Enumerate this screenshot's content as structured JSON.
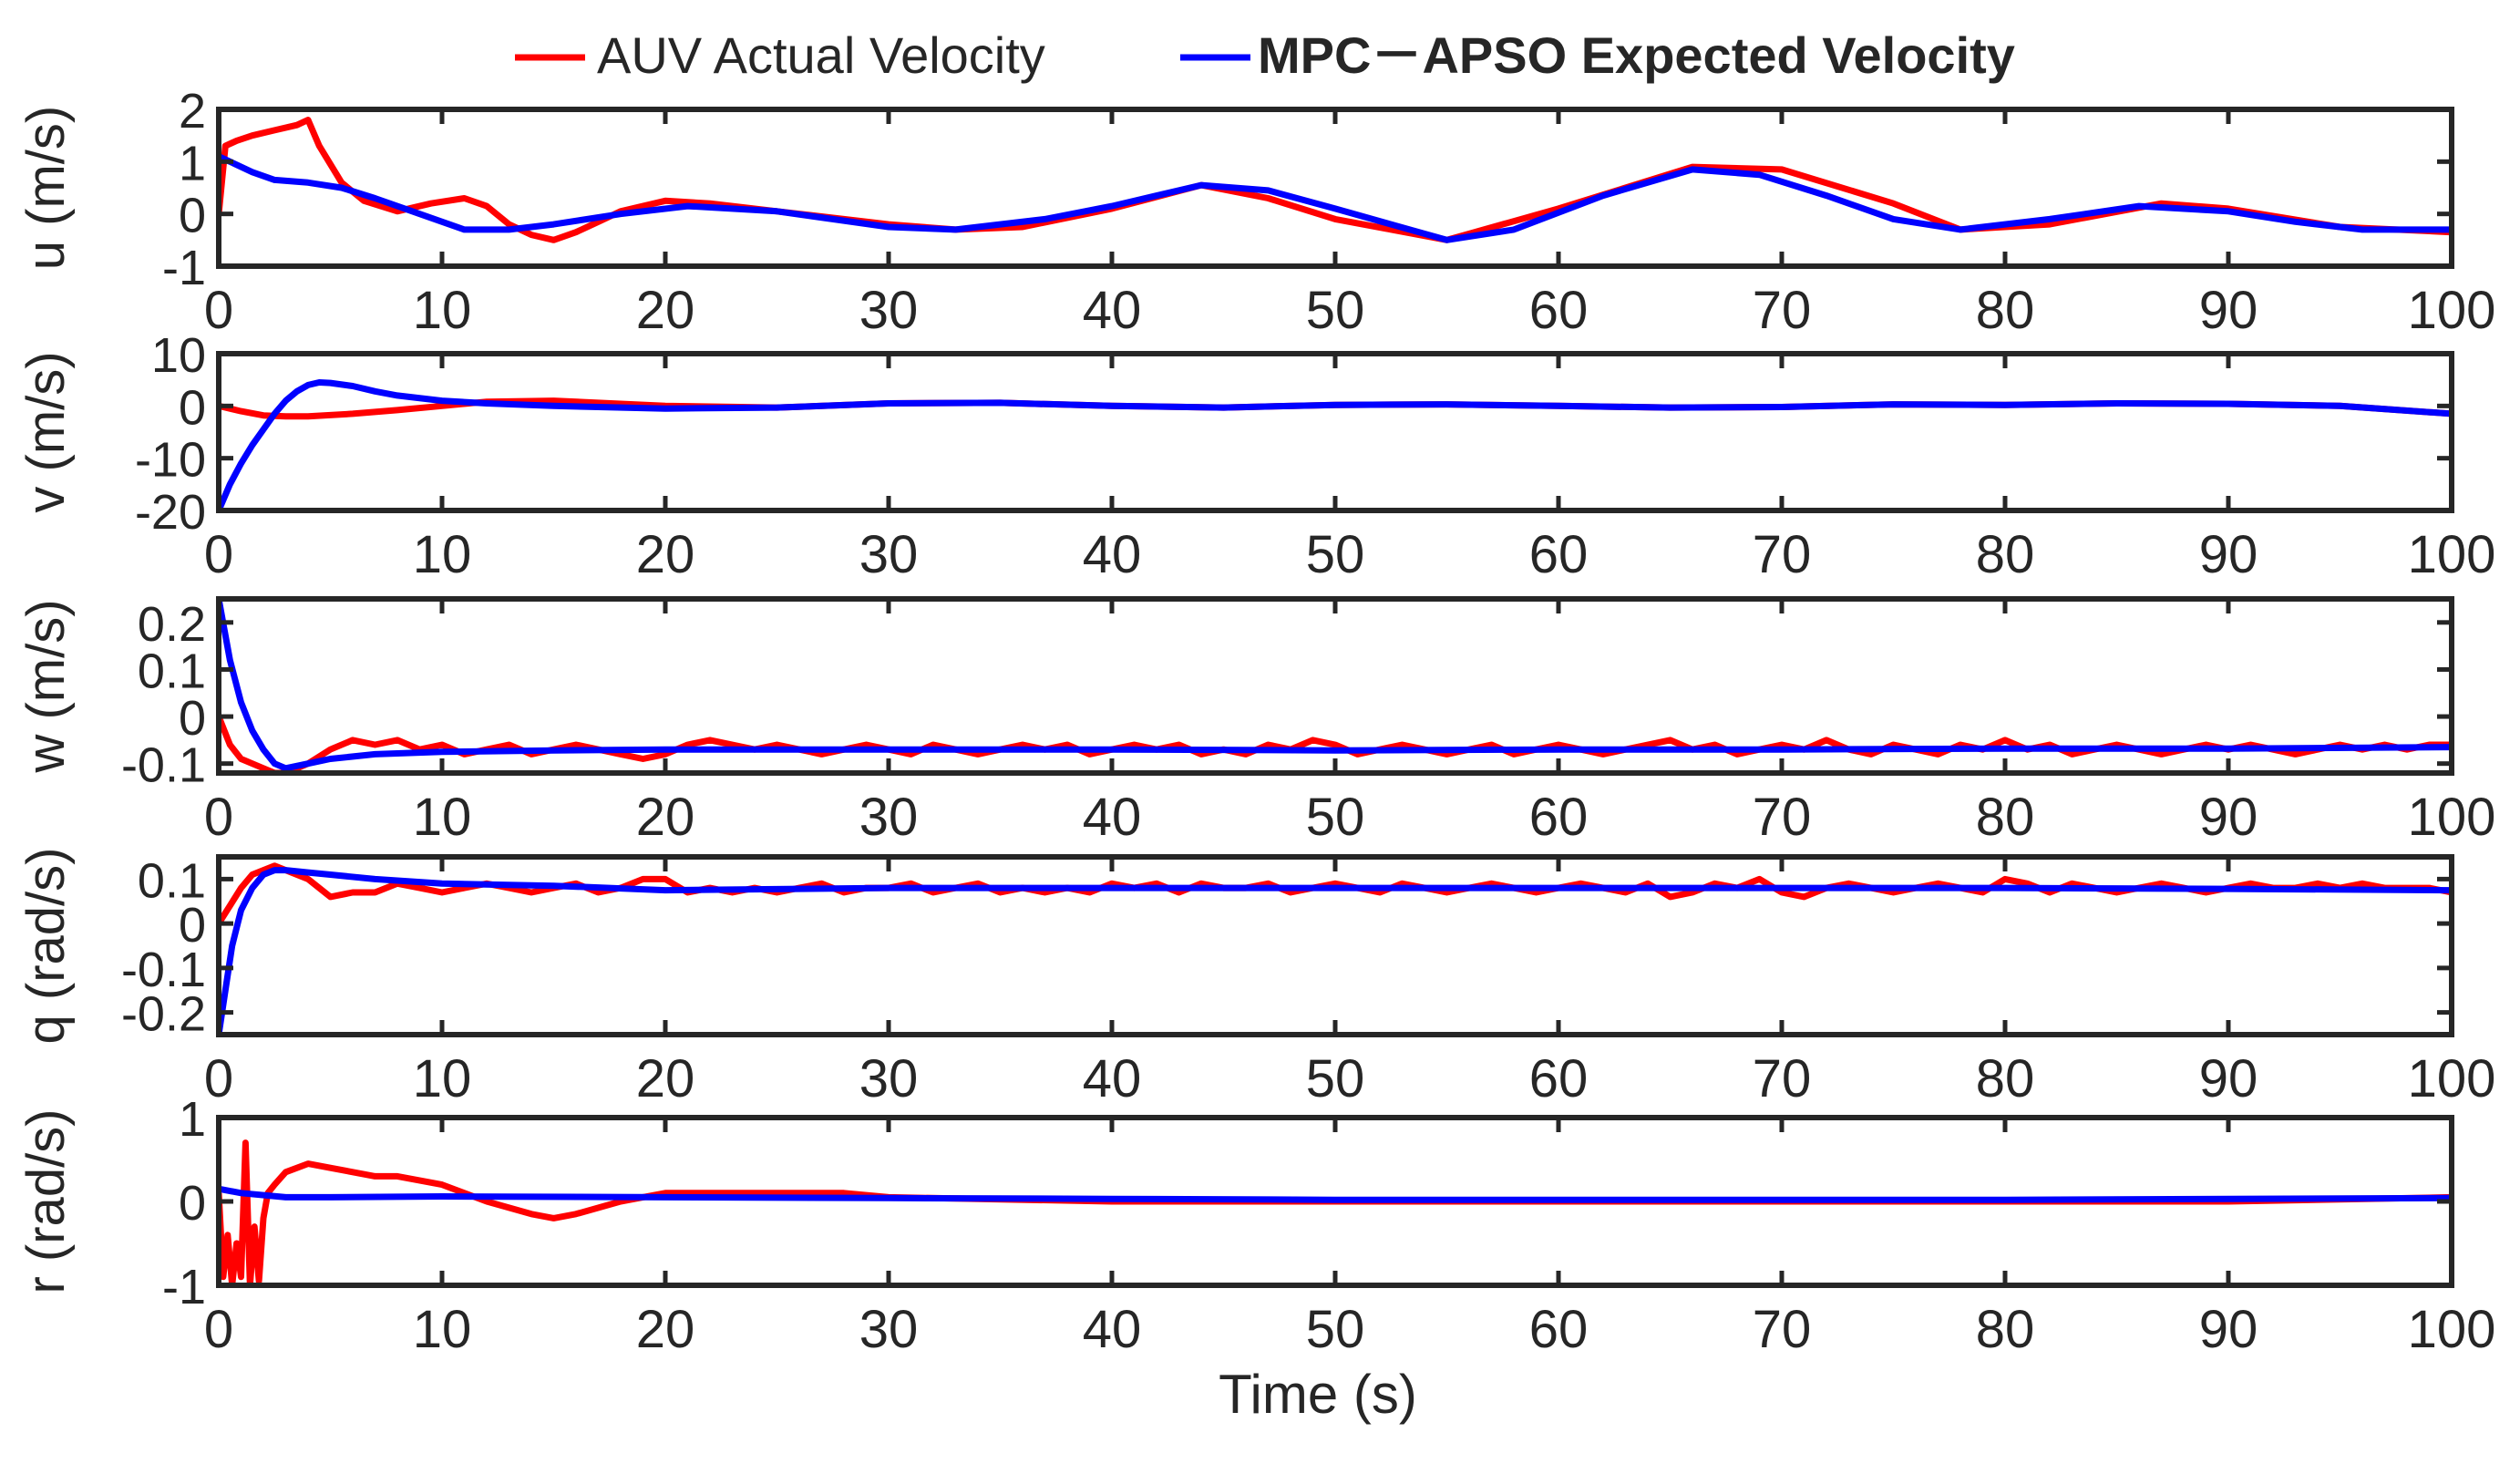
{
  "legend": {
    "placement": "top-center",
    "entries": [
      {
        "label": "AUV Actual Velocity",
        "color": "#ff0000"
      },
      {
        "label": "MPC－APSO Expected Velocity",
        "color": "#0000ff"
      }
    ]
  },
  "xlabel": "Time (s)",
  "chart_data": [
    {
      "type": "line",
      "ylabel": "u (m/s)",
      "xlim": [
        0,
        100
      ],
      "ylim": [
        -1,
        2
      ],
      "xticks": [
        0,
        10,
        20,
        30,
        40,
        50,
        60,
        70,
        80,
        90,
        100
      ],
      "yticks": [
        -1,
        0,
        1,
        2
      ],
      "series": [
        {
          "name": "AUV Actual Velocity",
          "color": "#ff0000",
          "x": [
            0,
            0.3,
            0.8,
            1.5,
            2.5,
            3.5,
            4,
            4.5,
            5.5,
            6.5,
            8,
            9.5,
            11,
            12,
            13,
            14,
            15,
            16,
            17,
            18,
            20,
            22,
            25,
            30,
            33,
            36,
            40,
            44,
            47,
            50,
            55,
            60,
            66,
            70,
            75,
            78,
            82,
            87,
            90,
            95,
            100
          ],
          "y": [
            0,
            1.3,
            1.4,
            1.5,
            1.6,
            1.7,
            1.8,
            1.3,
            0.6,
            0.25,
            0.05,
            0.2,
            0.3,
            0.15,
            -0.2,
            -0.4,
            -0.5,
            -0.35,
            -0.15,
            0.05,
            0.25,
            0.2,
            0.05,
            -0.2,
            -0.3,
            -0.25,
            0.1,
            0.55,
            0.3,
            -0.1,
            -0.5,
            0.1,
            0.9,
            0.85,
            0.2,
            -0.3,
            -0.2,
            0.2,
            0.1,
            -0.25,
            -0.35
          ]
        },
        {
          "name": "MPC－APSO Expected Velocity",
          "color": "#0000ff",
          "x": [
            0,
            0.5,
            1.5,
            2.5,
            4,
            5.5,
            7,
            9,
            11,
            13,
            15,
            18,
            21,
            25,
            30,
            33,
            37,
            40,
            44,
            47,
            50,
            55,
            58,
            62,
            66,
            69,
            72,
            75,
            78,
            82,
            86,
            90,
            93,
            96,
            100
          ],
          "y": [
            1.1,
            1.0,
            0.8,
            0.65,
            0.6,
            0.5,
            0.3,
            0.0,
            -0.3,
            -0.3,
            -0.2,
            0.0,
            0.15,
            0.05,
            -0.25,
            -0.3,
            -0.1,
            0.15,
            0.55,
            0.45,
            0.1,
            -0.5,
            -0.3,
            0.35,
            0.85,
            0.75,
            0.35,
            -0.1,
            -0.3,
            -0.1,
            0.15,
            0.05,
            -0.15,
            -0.3,
            -0.3
          ]
        }
      ]
    },
    {
      "type": "line",
      "ylabel": "v (m/s)",
      "xlim": [
        0,
        100
      ],
      "ylim": [
        -20,
        10
      ],
      "xticks": [
        0,
        10,
        20,
        30,
        40,
        50,
        60,
        70,
        80,
        90,
        100
      ],
      "yticks": [
        -20,
        -10,
        0,
        10
      ],
      "series": [
        {
          "name": "AUV Actual Velocity",
          "color": "#ff0000",
          "x": [
            0,
            1,
            2,
            3,
            4,
            6,
            8,
            10,
            12,
            15,
            20,
            25,
            30,
            35,
            40,
            45,
            50,
            55,
            60,
            65,
            70,
            75,
            80,
            85,
            90,
            95,
            100
          ],
          "y": [
            0,
            -1.0,
            -1.8,
            -2.0,
            -2.0,
            -1.5,
            -0.8,
            0.0,
            0.8,
            1.0,
            0.0,
            -0.3,
            0.5,
            0.6,
            0.0,
            -0.3,
            0.2,
            0.3,
            0.0,
            -0.3,
            -0.2,
            0.3,
            0.2,
            0.5,
            0.4,
            0.0,
            -1.5
          ]
        },
        {
          "name": "MPC－APSO Expected Velocity",
          "color": "#0000ff",
          "x": [
            0,
            0.5,
            1,
            1.5,
            2,
            2.5,
            3,
            3.5,
            4,
            4.5,
            5,
            6,
            7,
            8,
            10,
            12,
            15,
            20,
            25,
            30,
            35,
            40,
            45,
            50,
            55,
            60,
            65,
            70,
            75,
            80,
            85,
            90,
            95,
            100
          ],
          "y": [
            -20,
            -15,
            -11,
            -7.5,
            -4.5,
            -1.5,
            1.0,
            2.8,
            4.0,
            4.5,
            4.4,
            3.8,
            2.8,
            2.0,
            1.0,
            0.5,
            0.0,
            -0.5,
            -0.3,
            0.5,
            0.6,
            0.0,
            -0.3,
            0.2,
            0.3,
            0.0,
            -0.3,
            -0.2,
            0.3,
            0.2,
            0.5,
            0.4,
            0.0,
            -1.5
          ]
        }
      ]
    },
    {
      "type": "line",
      "ylabel": "w (m/s)",
      "xlim": [
        0,
        100
      ],
      "ylim": [
        -0.12,
        0.25
      ],
      "xticks": [
        0,
        10,
        20,
        30,
        40,
        50,
        60,
        70,
        80,
        90,
        100
      ],
      "yticks": [
        -0.1,
        0,
        0.1,
        0.2
      ],
      "series": [
        {
          "name": "AUV Actual Velocity",
          "color": "#ff0000",
          "x": [
            0,
            0.5,
            1,
            1.5,
            2,
            2.5,
            3,
            4,
            5,
            6,
            7,
            8,
            9,
            10,
            11,
            12,
            13,
            14,
            15,
            16,
            17,
            18,
            19,
            20,
            21,
            22,
            23,
            24,
            25,
            26,
            27,
            28,
            29,
            30,
            31,
            32,
            33,
            34,
            35,
            36,
            37,
            38,
            39,
            40,
            41,
            42,
            43,
            44,
            45,
            46,
            47,
            48,
            49,
            50,
            51,
            52,
            53,
            54,
            55,
            56,
            57,
            58,
            59,
            60,
            61,
            62,
            63,
            64,
            65,
            66,
            67,
            68,
            69,
            70,
            71,
            72,
            73,
            74,
            75,
            76,
            77,
            78,
            79,
            80,
            81,
            82,
            83,
            84,
            85,
            86,
            87,
            88,
            89,
            90,
            91,
            92,
            93,
            94,
            95,
            96,
            97,
            98,
            99,
            100
          ],
          "y": [
            0.0,
            -0.06,
            -0.09,
            -0.1,
            -0.11,
            -0.12,
            -0.12,
            -0.1,
            -0.07,
            -0.05,
            -0.06,
            -0.05,
            -0.07,
            -0.06,
            -0.08,
            -0.07,
            -0.06,
            -0.08,
            -0.07,
            -0.06,
            -0.07,
            -0.08,
            -0.09,
            -0.08,
            -0.06,
            -0.05,
            -0.06,
            -0.07,
            -0.06,
            -0.07,
            -0.08,
            -0.07,
            -0.06,
            -0.07,
            -0.08,
            -0.06,
            -0.07,
            -0.08,
            -0.07,
            -0.06,
            -0.07,
            -0.06,
            -0.08,
            -0.07,
            -0.06,
            -0.07,
            -0.06,
            -0.08,
            -0.07,
            -0.08,
            -0.06,
            -0.07,
            -0.05,
            -0.06,
            -0.08,
            -0.07,
            -0.06,
            -0.07,
            -0.08,
            -0.07,
            -0.06,
            -0.08,
            -0.07,
            -0.06,
            -0.07,
            -0.08,
            -0.07,
            -0.06,
            -0.05,
            -0.07,
            -0.06,
            -0.08,
            -0.07,
            -0.06,
            -0.07,
            -0.05,
            -0.07,
            -0.08,
            -0.06,
            -0.07,
            -0.08,
            -0.06,
            -0.07,
            -0.05,
            -0.07,
            -0.06,
            -0.08,
            -0.07,
            -0.06,
            -0.07,
            -0.08,
            -0.07,
            -0.06,
            -0.07,
            -0.06,
            -0.07,
            -0.08,
            -0.07,
            -0.06,
            -0.07,
            -0.06,
            -0.07,
            -0.06,
            -0.06
          ]
        },
        {
          "name": "MPC－APSO Expected Velocity",
          "color": "#0000ff",
          "x": [
            0,
            0.5,
            1,
            1.5,
            2,
            2.5,
            3,
            4,
            5,
            7,
            10,
            15,
            20,
            30,
            40,
            50,
            60,
            70,
            80,
            90,
            100
          ],
          "y": [
            0.25,
            0.12,
            0.03,
            -0.03,
            -0.07,
            -0.1,
            -0.11,
            -0.1,
            -0.09,
            -0.08,
            -0.075,
            -0.072,
            -0.07,
            -0.07,
            -0.07,
            -0.072,
            -0.07,
            -0.07,
            -0.068,
            -0.068,
            -0.065
          ]
        }
      ]
    },
    {
      "type": "line",
      "ylabel": "q (rad/s)",
      "xlim": [
        0,
        100
      ],
      "ylim": [
        -0.25,
        0.15
      ],
      "xticks": [
        0,
        10,
        20,
        30,
        40,
        50,
        60,
        70,
        80,
        90,
        100
      ],
      "yticks": [
        -0.2,
        -0.1,
        0,
        0.1
      ],
      "series": [
        {
          "name": "AUV Actual Velocity",
          "color": "#ff0000",
          "x": [
            0,
            0.5,
            1,
            1.5,
            2,
            2.5,
            3,
            4,
            5,
            6,
            7,
            8,
            9,
            10,
            11,
            12,
            13,
            14,
            15,
            16,
            17,
            18,
            19,
            20,
            21,
            22,
            23,
            24,
            25,
            26,
            27,
            28,
            29,
            30,
            31,
            32,
            33,
            34,
            35,
            36,
            37,
            38,
            39,
            40,
            41,
            42,
            43,
            44,
            45,
            46,
            47,
            48,
            49,
            50,
            51,
            52,
            53,
            54,
            55,
            56,
            57,
            58,
            59,
            60,
            61,
            62,
            63,
            64,
            65,
            66,
            67,
            68,
            69,
            70,
            71,
            72,
            73,
            74,
            75,
            76,
            77,
            78,
            79,
            80,
            81,
            82,
            83,
            84,
            85,
            86,
            87,
            88,
            89,
            90,
            91,
            92,
            93,
            94,
            95,
            96,
            97,
            98,
            99,
            100
          ],
          "y": [
            0.0,
            0.04,
            0.08,
            0.11,
            0.12,
            0.13,
            0.12,
            0.1,
            0.06,
            0.07,
            0.07,
            0.09,
            0.08,
            0.07,
            0.08,
            0.09,
            0.08,
            0.07,
            0.08,
            0.09,
            0.07,
            0.08,
            0.1,
            0.1,
            0.07,
            0.08,
            0.07,
            0.08,
            0.07,
            0.08,
            0.09,
            0.07,
            0.08,
            0.08,
            0.09,
            0.07,
            0.08,
            0.09,
            0.07,
            0.08,
            0.07,
            0.08,
            0.07,
            0.09,
            0.08,
            0.09,
            0.07,
            0.09,
            0.08,
            0.08,
            0.09,
            0.07,
            0.08,
            0.09,
            0.08,
            0.07,
            0.09,
            0.08,
            0.07,
            0.08,
            0.09,
            0.08,
            0.07,
            0.08,
            0.09,
            0.08,
            0.07,
            0.09,
            0.06,
            0.07,
            0.09,
            0.08,
            0.1,
            0.07,
            0.06,
            0.08,
            0.09,
            0.08,
            0.07,
            0.08,
            0.09,
            0.08,
            0.07,
            0.1,
            0.09,
            0.07,
            0.09,
            0.08,
            0.07,
            0.08,
            0.09,
            0.08,
            0.07,
            0.08,
            0.09,
            0.08,
            0.08,
            0.09,
            0.08,
            0.09,
            0.08,
            0.08,
            0.08,
            0.07
          ]
        },
        {
          "name": "MPC－APSO Expected Velocity",
          "color": "#0000ff",
          "x": [
            0,
            0.3,
            0.6,
            1,
            1.5,
            2,
            2.5,
            3,
            4,
            5,
            7,
            10,
            15,
            20,
            30,
            40,
            50,
            60,
            70,
            80,
            90,
            100
          ],
          "y": [
            -0.25,
            -0.15,
            -0.05,
            0.03,
            0.08,
            0.11,
            0.12,
            0.12,
            0.115,
            0.11,
            0.1,
            0.09,
            0.085,
            0.075,
            0.08,
            0.08,
            0.08,
            0.08,
            0.08,
            0.08,
            0.078,
            0.075
          ]
        }
      ]
    },
    {
      "type": "line",
      "ylabel": "r (rad/s)",
      "xlim": [
        0,
        100
      ],
      "ylim": [
        -1,
        1
      ],
      "xticks": [
        0,
        10,
        20,
        30,
        40,
        50,
        60,
        70,
        80,
        90,
        100
      ],
      "yticks": [
        -1,
        0,
        1
      ],
      "series": [
        {
          "name": "AUV Actual Velocity",
          "color": "#ff0000",
          "x": [
            0,
            0.2,
            0.4,
            0.6,
            0.8,
            1.0,
            1.2,
            1.4,
            1.6,
            1.8,
            2.0,
            2.2,
            2.5,
            3,
            4,
            5,
            6,
            7,
            8,
            10,
            12,
            14,
            15,
            16,
            18,
            20,
            25,
            28,
            30,
            40,
            50,
            60,
            70,
            80,
            90,
            100
          ],
          "y": [
            0.1,
            -0.9,
            -0.4,
            -1.0,
            -0.5,
            -0.9,
            0.7,
            -1.0,
            -0.3,
            -0.95,
            -0.2,
            0.1,
            0.2,
            0.35,
            0.45,
            0.4,
            0.35,
            0.3,
            0.3,
            0.2,
            0.0,
            -0.15,
            -0.2,
            -0.15,
            0.0,
            0.1,
            0.1,
            0.1,
            0.05,
            0.0,
            0.0,
            0.0,
            0.0,
            0.0,
            0.0,
            0.05
          ]
        },
        {
          "name": "MPC－APSO Expected Velocity",
          "color": "#0000ff",
          "x": [
            0,
            1,
            3,
            5,
            10,
            20,
            30,
            40,
            50,
            60,
            70,
            80,
            90,
            100
          ],
          "y": [
            0.15,
            0.1,
            0.05,
            0.05,
            0.06,
            0.05,
            0.04,
            0.03,
            0.02,
            0.02,
            0.02,
            0.02,
            0.03,
            0.04
          ]
        }
      ]
    }
  ]
}
